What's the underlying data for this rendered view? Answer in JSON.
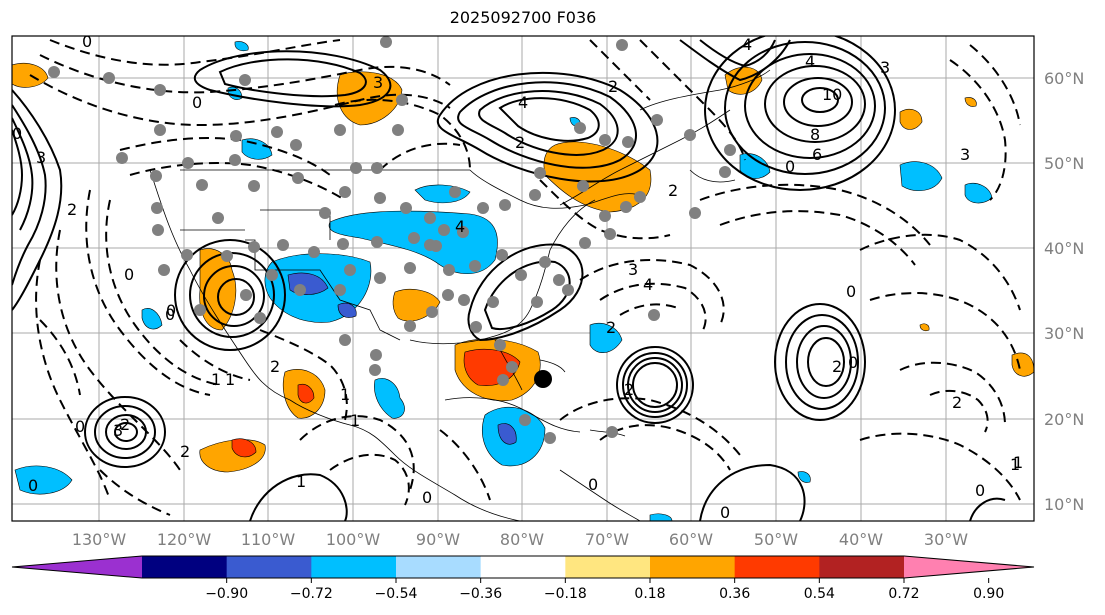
{
  "title": "2025092700 F036",
  "lat_labels": [
    "60°N",
    "50°N",
    "40°N",
    "30°N",
    "20°N",
    "10°N"
  ],
  "lon_labels": [
    "130°W",
    "120°W",
    "110°W",
    "100°W",
    "90°W",
    "80°W",
    "70°W",
    "60°W",
    "50°W",
    "40°W",
    "30°W"
  ],
  "colorbar": {
    "ticks": [
      "−0.90",
      "−0.72",
      "−0.54",
      "−0.36",
      "−0.18",
      "0.18",
      "0.36",
      "0.54",
      "0.72",
      "0.90"
    ],
    "colors": [
      "#9b30d0",
      "#000080",
      "#3a5bd0",
      "#00bfff",
      "#a8dcff",
      "#ffffff",
      "#ffe680",
      "#ffa500",
      "#ff3a00",
      "#b22222",
      "#ff80b0"
    ]
  },
  "contour_labels": [
    "0",
    "3",
    "4",
    "2",
    "4",
    "4",
    "3",
    "10",
    "8",
    "6",
    "3",
    "4",
    "0",
    "0",
    "1",
    "2",
    "3",
    "0",
    "1",
    "2",
    "4",
    "3",
    "2",
    "2",
    "2",
    "2",
    "0",
    "0",
    "1",
    "1",
    "0",
    "0",
    "0",
    "1",
    "2",
    "1",
    "2",
    "3",
    "2",
    "0",
    "0",
    "0",
    "0",
    "0",
    "1",
    "2",
    "0"
  ]
}
